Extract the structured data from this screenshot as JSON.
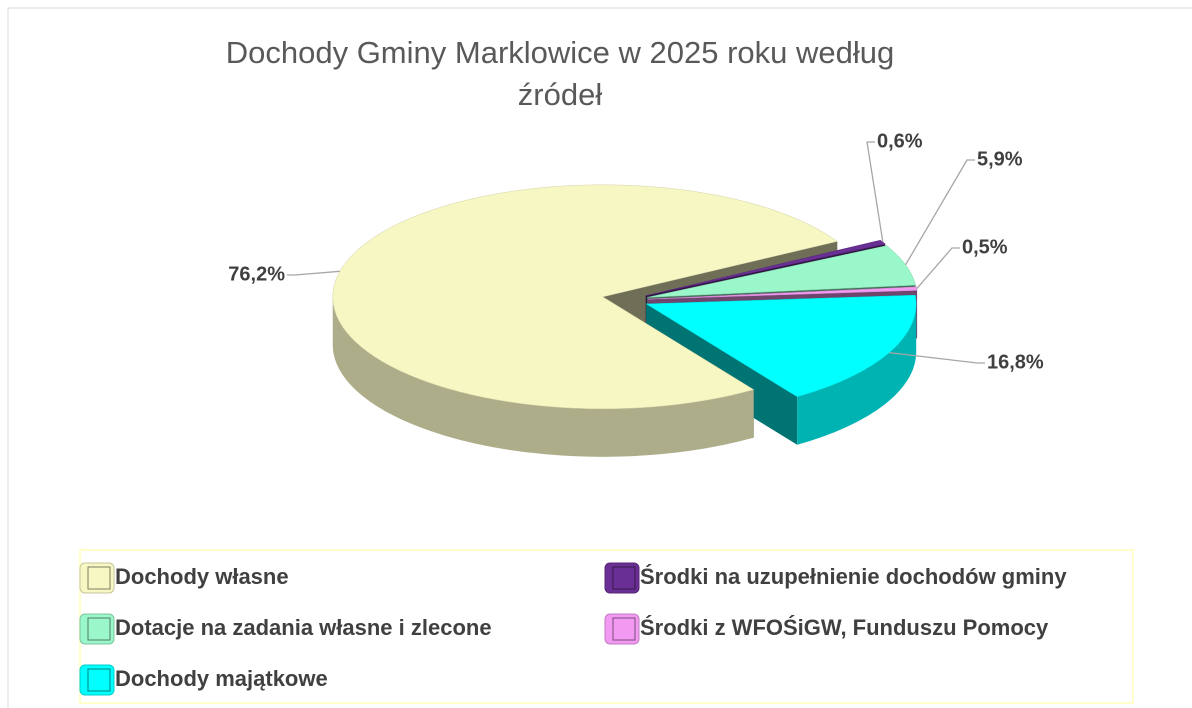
{
  "chart_data": {
    "type": "pie",
    "title": "Dochody Gminy Marklowice w 2025 roku według źródeł",
    "categories": [
      "Dochody własne",
      "Środki na uzupełnienie dochodów gminy",
      "Dotacje na zadania własne i zlecone",
      "Środki z WFOŚiGW, Funduszu Pomocy",
      "Dochody majątkowe"
    ],
    "values": [
      76.2,
      0.6,
      5.9,
      0.5,
      16.8
    ],
    "value_labels": [
      "76,2%",
      "0,6%",
      "5,9%",
      "0,5%",
      "16,8%"
    ],
    "colors": [
      "#f7f7c4",
      "#6a2f94",
      "#9af7c9",
      "#f29af2",
      "#00ffff"
    ],
    "legend": "bottom"
  }
}
